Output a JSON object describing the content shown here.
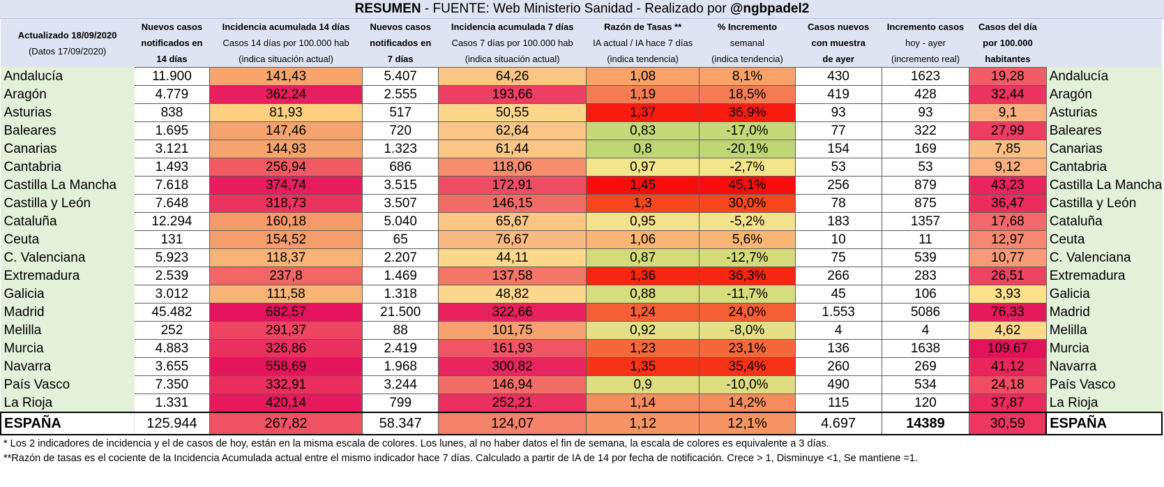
{
  "title": {
    "bold1": "RESUMEN",
    "mid": " - FUENTE: Web Ministerio Sanidad  - Realizado por ",
    "bold2": "@ngbpadel2"
  },
  "headers": [
    [
      "Actualizado 18/09/2020",
      "(Datos 17/09/2020)",
      ""
    ],
    [
      "Nuevos casos",
      "notificados en",
      "14 días"
    ],
    [
      "Incidencia acumulada 14 días",
      "Casos 14 días por 100.000 hab",
      "(indica situación actual)"
    ],
    [
      "Nuevos casos",
      "notificados en",
      "7 días"
    ],
    [
      "Incidencia acumulada 7 días",
      "Casos 7 días por 100.000 hab",
      "(indica situación actual)"
    ],
    [
      "Razón de Tasas **",
      "IA actual / IA hace 7 días",
      "(indica tendencia)"
    ],
    [
      "% Incremento",
      "semanal",
      "(indica tendencia)"
    ],
    [
      "Casos nuevos",
      "con muestra",
      "de ayer"
    ],
    [
      "Incremento casos",
      "hoy - ayer",
      "(incremento real)"
    ],
    [
      "Casos del día",
      "por 100.000",
      "habitantes"
    ]
  ],
  "rows": [
    {
      "name": "Andalucía",
      "n14": "11.900",
      "ia14": "141,43",
      "ia14_bg": "#f7a46d",
      "n7": "5.407",
      "ia7": "64,26",
      "ia7_bg": "#f9c685",
      "razon": "1,08",
      "razon_bg": "#f8a26a",
      "pct": "8,1%",
      "pct_bg": "#f8a26a",
      "ayer": "430",
      "inc": "1623",
      "dia": "19,28",
      "dia_bg": "#f25c66"
    },
    {
      "name": "Aragón",
      "n14": "4.779",
      "ia14": "362,24",
      "ia14_bg": "#e91e5e",
      "n7": "2.555",
      "ia7": "193,66",
      "ia7_bg": "#ed3f63",
      "razon": "1,19",
      "razon_bg": "#f47c55",
      "pct": "18,5%",
      "pct_bg": "#f47c55",
      "ayer": "419",
      "inc": "428",
      "dia": "32,44",
      "dia_bg": "#ec3460"
    },
    {
      "name": "Asturias",
      "n14": "838",
      "ia14": "81,93",
      "ia14_bg": "#fdcf81",
      "n7": "517",
      "ia7": "50,55",
      "ia7_bg": "#fcd68b",
      "razon": "1,37",
      "razon_bg": "#f81b0f",
      "pct": "36,9%",
      "pct_bg": "#f81b0f",
      "ayer": "93",
      "inc": "93",
      "dia": "9,1",
      "dia_bg": "#f9b07e"
    },
    {
      "name": "Baleares",
      "n14": "1.695",
      "ia14": "147,46",
      "ia14_bg": "#f7a36d",
      "n7": "720",
      "ia7": "62,64",
      "ia7_bg": "#f9c685",
      "razon": "0,83",
      "razon_bg": "#c7d878",
      "pct": "-17,0%",
      "pct_bg": "#c7d878",
      "ayer": "77",
      "inc": "322",
      "dia": "27,99",
      "dia_bg": "#ee3d62"
    },
    {
      "name": "Canarias",
      "n14": "3.121",
      "ia14": "144,93",
      "ia14_bg": "#f7a36d",
      "n7": "1.323",
      "ia7": "61,44",
      "ia7_bg": "#f9c685",
      "razon": "0,8",
      "razon_bg": "#c0d675",
      "pct": "-20,1%",
      "pct_bg": "#c0d675",
      "ayer": "154",
      "inc": "169",
      "dia": "7,85",
      "dia_bg": "#fbbe84"
    },
    {
      "name": "Cantabria",
      "n14": "1.493",
      "ia14": "256,94",
      "ia14_bg": "#f05a63",
      "n7": "686",
      "ia7": "118,06",
      "ia7_bg": "#f58d6e",
      "razon": "0,97",
      "razon_bg": "#f3e58c",
      "pct": "-2,7%",
      "pct_bg": "#f3e58c",
      "ayer": "53",
      "inc": "53",
      "dia": "9,12",
      "dia_bg": "#f9b07e"
    },
    {
      "name": "Castilla La Mancha",
      "n14": "7.618",
      "ia14": "374,74",
      "ia14_bg": "#e81d5d",
      "n7": "3.515",
      "ia7": "172,91",
      "ia7_bg": "#ef4d64",
      "razon": "1,45",
      "razon_bg": "#f80d0d",
      "pct": "45,1%",
      "pct_bg": "#f80d0d",
      "ayer": "256",
      "inc": "879",
      "dia": "43,23",
      "dia_bg": "#e9235e"
    },
    {
      "name": "Castilla y León",
      "n14": "7.648",
      "ia14": "318,73",
      "ia14_bg": "#eb335f",
      "n7": "3.507",
      "ia7": "146,15",
      "ia7_bg": "#f16c67",
      "razon": "1,3",
      "razon_bg": "#f6461d",
      "pct": "30,0%",
      "pct_bg": "#f6461d",
      "ayer": "78",
      "inc": "875",
      "dia": "36,47",
      "dia_bg": "#ea2c5f"
    },
    {
      "name": "Cataluña",
      "n14": "12.294",
      "ia14": "160,18",
      "ia14_bg": "#f69a6c",
      "n7": "5.040",
      "ia7": "65,67",
      "ia7_bg": "#f9c685",
      "razon": "0,95",
      "razon_bg": "#f4e18b",
      "pct": "-5,2%",
      "pct_bg": "#f4e18b",
      "ayer": "183",
      "inc": "1357",
      "dia": "17,68",
      "dia_bg": "#f3686a"
    },
    {
      "name": "Ceuta",
      "n14": "131",
      "ia14": "154,52",
      "ia14_bg": "#f69d6c",
      "n7": "65",
      "ia7": "76,67",
      "ia7_bg": "#f8ba80",
      "razon": "1,06",
      "razon_bg": "#f9b573",
      "pct": "5,6%",
      "pct_bg": "#f9b573",
      "ayer": "10",
      "inc": "11",
      "dia": "12,97",
      "dia_bg": "#f68872"
    },
    {
      "name": "C. Valenciana",
      "n14": "5.923",
      "ia14": "118,37",
      "ia14_bg": "#f9b377",
      "n7": "2.207",
      "ia7": "44,11",
      "ia7_bg": "#fcd88c",
      "razon": "0,87",
      "razon_bg": "#d5db7b",
      "pct": "-12,7%",
      "pct_bg": "#d5db7b",
      "ayer": "75",
      "inc": "539",
      "dia": "10,77",
      "dia_bg": "#f79a78"
    },
    {
      "name": "Extremadura",
      "n14": "2.539",
      "ia14": "237,8",
      "ia14_bg": "#f26765",
      "n7": "1.469",
      "ia7": "137,58",
      "ia7_bg": "#f37668",
      "razon": "1,36",
      "razon_bg": "#f82512",
      "pct": "36,3%",
      "pct_bg": "#f82512",
      "ayer": "266",
      "inc": "283",
      "dia": "26,51",
      "dia_bg": "#ef4363"
    },
    {
      "name": "Galicia",
      "n14": "3.012",
      "ia14": "111,58",
      "ia14_bg": "#f9b577",
      "n7": "1.318",
      "ia7": "48,82",
      "ia7_bg": "#fcd68b",
      "razon": "0,88",
      "razon_bg": "#d7dc7c",
      "pct": "-11,7%",
      "pct_bg": "#d7dc7c",
      "ayer": "45",
      "inc": "106",
      "dia": "3,93",
      "dia_bg": "#fce08a"
    },
    {
      "name": "Madrid",
      "n14": "45.482",
      "ia14": "682,57",
      "ia14_bg": "#e4125b",
      "n7": "21.500",
      "ia7": "322,66",
      "ia7_bg": "#e8205d",
      "razon": "1,24",
      "razon_bg": "#f55f35",
      "pct": "24,0%",
      "pct_bg": "#f55f35",
      "ayer": "1.553",
      "inc": "5086",
      "dia": "76,33",
      "dia_bg": "#e41a5d"
    },
    {
      "name": "Melilla",
      "n14": "252",
      "ia14": "291,37",
      "ia14_bg": "#ed4561",
      "n7": "88",
      "ia7": "101,75",
      "ia7_bg": "#f6a06f",
      "razon": "0,92",
      "razon_bg": "#e5df86",
      "pct": "-8,0%",
      "pct_bg": "#e5df86",
      "ayer": "4",
      "inc": "4",
      "dia": "4,62",
      "dia_bg": "#fcd88a"
    },
    {
      "name": "Murcia",
      "n14": "4.883",
      "ia14": "326,86",
      "ia14_bg": "#ea305f",
      "n7": "2.419",
      "ia7": "161,93",
      "ia7_bg": "#f05466",
      "razon": "1,23",
      "razon_bg": "#f5673c",
      "pct": "23,1%",
      "pct_bg": "#f5673c",
      "ayer": "136",
      "inc": "1638",
      "dia": "109,67",
      "dia_bg": "#e3135b"
    },
    {
      "name": "Navarra",
      "n14": "3.655",
      "ia14": "558,69",
      "ia14_bg": "#e5155b",
      "n7": "1.968",
      "ia7": "300,82",
      "ia7_bg": "#e9245e",
      "razon": "1,35",
      "razon_bg": "#f73216",
      "pct": "35,4%",
      "pct_bg": "#f73216",
      "ayer": "260",
      "inc": "269",
      "dia": "41,12",
      "dia_bg": "#e9255e"
    },
    {
      "name": "País Vasco",
      "n14": "7.350",
      "ia14": "332,91",
      "ia14_bg": "#ea2e5f",
      "n7": "3.244",
      "ia7": "146,94",
      "ia7_bg": "#f16c67",
      "razon": "0,9",
      "razon_bg": "#dedd81",
      "pct": "-10,0%",
      "pct_bg": "#dedd81",
      "ayer": "490",
      "inc": "534",
      "dia": "24,18",
      "dia_bg": "#f04c63"
    },
    {
      "name": "La Rioja",
      "n14": "1.331",
      "ia14": "420,14",
      "ia14_bg": "#e7195c",
      "n7": "799",
      "ia7": "252,21",
      "ia7_bg": "#eb305f",
      "razon": "1,14",
      "razon_bg": "#f68c5e",
      "pct": "14,2%",
      "pct_bg": "#f68c5e",
      "ayer": "115",
      "inc": "120",
      "dia": "37,87",
      "dia_bg": "#ea2a5f"
    }
  ],
  "total": {
    "name": "ESPAÑA",
    "n14": "125.944",
    "ia14": "267,82",
    "ia14_bg": "#ef5262",
    "n7": "58.347",
    "ia7": "124,07",
    "ia7_bg": "#f4826b",
    "razon": "1,12",
    "razon_bg": "#f79464",
    "pct": "12,1%",
    "pct_bg": "#f79464",
    "ayer": "4.697",
    "inc": "14389",
    "dia": "30,59",
    "dia_bg": "#ed3661"
  },
  "footnotes": [
    "* Los 2 indicadores de incidencia y el de casos de hoy, están en la misma escala de colores. Los lunes, al no haber datos el fin de semana, la escala de colores es equivalente a 3 días.",
    "**Razón de tasas es el cociente de la Incidencia Acumulada actual entre el mismo indicador hace 7 días. Calculado a partir de IA de 14  por fecha de notificación. Crece > 1, Disminuye <1,  Se mantiene =1."
  ]
}
